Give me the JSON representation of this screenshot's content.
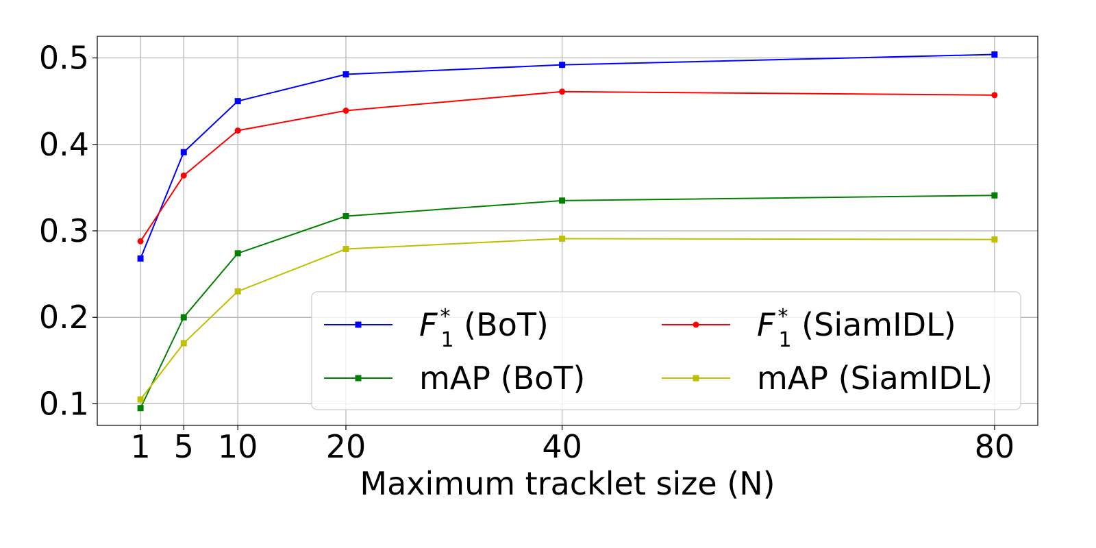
{
  "chart_data": {
    "type": "line",
    "title": "",
    "xlabel": "Maximum tracklet size (N)",
    "ylabel": "",
    "x": [
      1,
      5,
      10,
      20,
      40,
      80
    ],
    "x_tick_labels": [
      "1",
      "5",
      "10",
      "20",
      "40",
      "80"
    ],
    "y_ticks": [
      0.1,
      0.2,
      0.3,
      0.4,
      0.5
    ],
    "y_tick_labels": [
      "0.1",
      "0.2",
      "0.3",
      "0.4",
      "0.5"
    ],
    "xlim": [
      -3,
      84
    ],
    "ylim": [
      0.075,
      0.525
    ],
    "grid": true,
    "legend_position": "lower-right",
    "series": [
      {
        "name": "F1* (BoT)",
        "label_main": "F",
        "label_sub": "1",
        "label_sup": "*",
        "label_rest": " (BoT)",
        "color": "#0000ff",
        "marker": "square",
        "values": [
          0.268,
          0.391,
          0.45,
          0.481,
          0.492,
          0.504
        ]
      },
      {
        "name": "F1* (SiamIDL)",
        "label_main": "F",
        "label_sub": "1",
        "label_sup": "*",
        "label_rest": " (SiamIDL)",
        "color": "#ff0000",
        "marker": "circle",
        "values": [
          0.288,
          0.364,
          0.416,
          0.439,
          0.461,
          0.457
        ]
      },
      {
        "name": "mAP (BoT)",
        "label_main": "mAP (BoT)",
        "label_sub": "",
        "label_sup": "",
        "label_rest": "",
        "color": "#008000",
        "marker": "square",
        "values": [
          0.095,
          0.2,
          0.274,
          0.317,
          0.335,
          0.341
        ]
      },
      {
        "name": "mAP (SiamIDL)",
        "label_main": "mAP (SiamIDL)",
        "label_sub": "",
        "label_sup": "",
        "label_rest": "",
        "color": "#bfbf00",
        "marker": "square",
        "values": [
          0.105,
          0.17,
          0.23,
          0.279,
          0.291,
          0.29
        ]
      }
    ]
  }
}
